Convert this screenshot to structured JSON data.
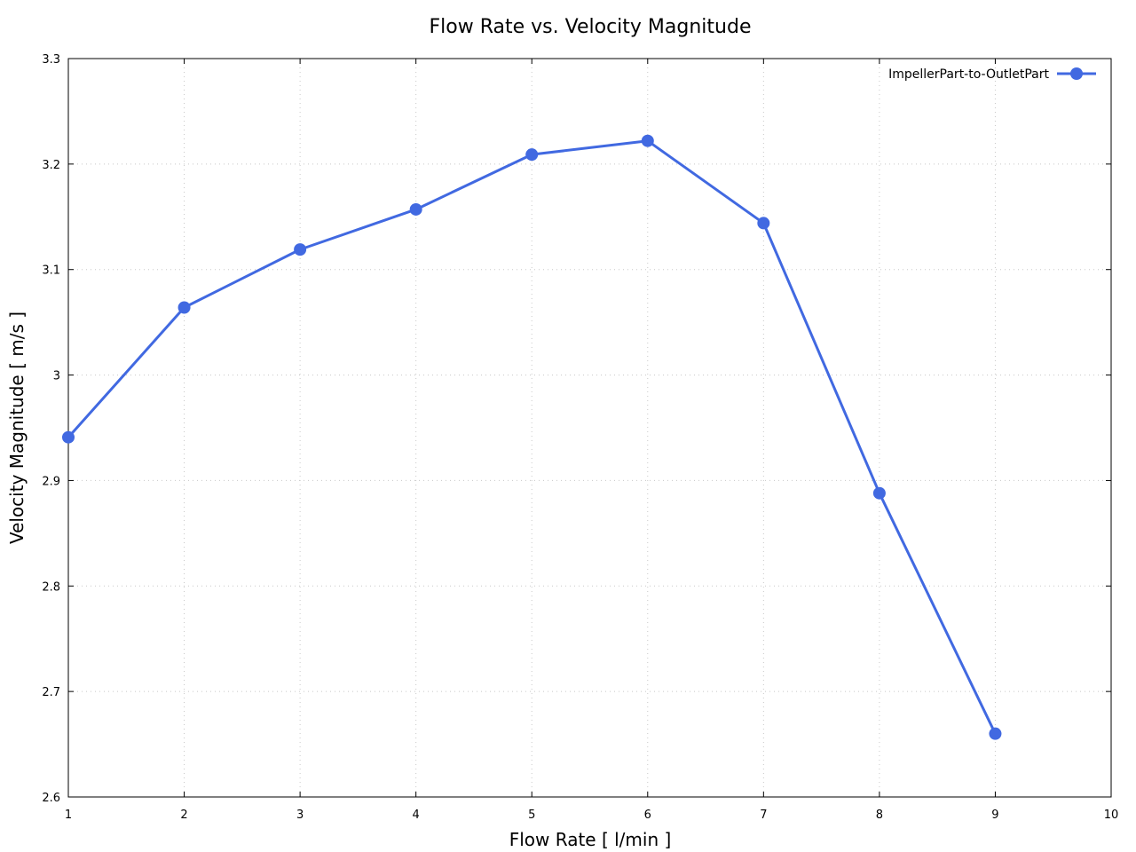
{
  "chart_data": {
    "type": "line",
    "title": "Flow Rate vs. Velocity Magnitude",
    "xlabel": "Flow Rate [ l/min ]",
    "ylabel": "Velocity Magnitude [ m/s ]",
    "xlim": [
      1,
      10
    ],
    "ylim": [
      2.6,
      3.3
    ],
    "xticks": [
      "1",
      "2",
      "3",
      "4",
      "5",
      "6",
      "7",
      "8",
      "9",
      "10"
    ],
    "yticks": [
      "2.6",
      "2.7",
      "2.8",
      "2.9",
      "3",
      "3.1",
      "3.2",
      "3.3"
    ],
    "grid": true,
    "legend_position": "top-right",
    "series": [
      {
        "name": "ImpellerPart-to-OutletPart",
        "color": "#4169e1",
        "x": [
          1,
          2,
          3,
          4,
          5,
          6,
          7,
          8,
          9
        ],
        "y": [
          2.941,
          3.064,
          3.119,
          3.157,
          3.209,
          3.222,
          3.144,
          2.888,
          2.66
        ]
      }
    ]
  }
}
